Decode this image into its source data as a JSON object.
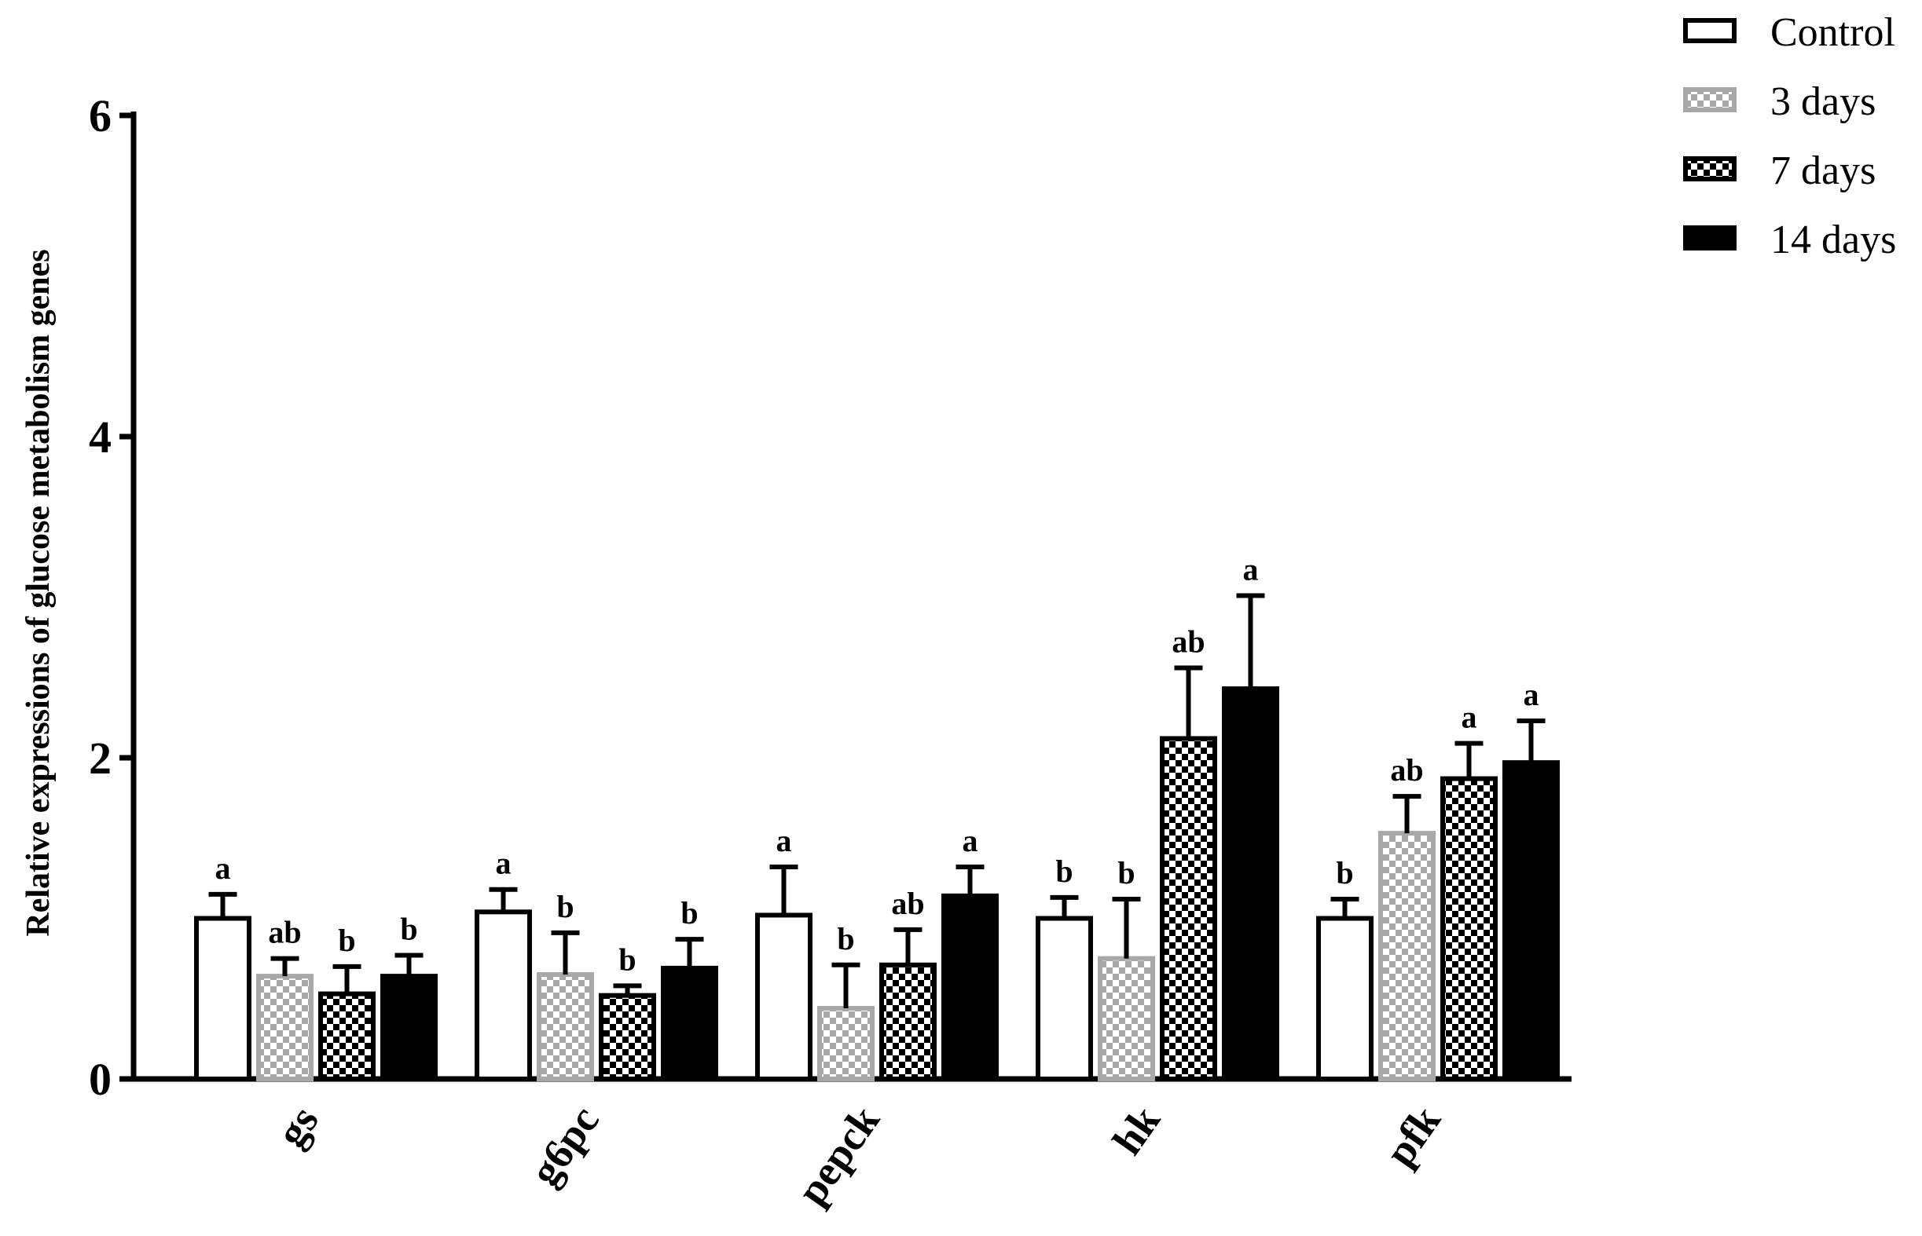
{
  "chart_data": {
    "type": "bar",
    "title": "",
    "xlabel": "",
    "ylabel": "Relative expressions of glucose metabolism genes",
    "ylim": [
      0,
      6
    ],
    "yticks": [
      0,
      2,
      4,
      6
    ],
    "categories": [
      "gs",
      "g6pc",
      "pepck",
      "hk",
      "pfk"
    ],
    "legend_position": "top-right",
    "series": [
      {
        "name": "Control",
        "style": "open",
        "values": [
          1.0,
          1.04,
          1.02,
          1.0,
          1.0
        ],
        "errors": [
          0.15,
          0.14,
          0.3,
          0.13,
          0.12
        ],
        "letters": [
          "a",
          "a",
          "a",
          "b",
          "b"
        ]
      },
      {
        "name": "3 days",
        "style": "grey-checker",
        "values": [
          0.64,
          0.65,
          0.44,
          0.75,
          1.53
        ],
        "errors": [
          0.11,
          0.26,
          0.27,
          0.37,
          0.23
        ],
        "letters": [
          "ab",
          "b",
          "b",
          "b",
          "ab"
        ]
      },
      {
        "name": "7 days",
        "style": "black-checker",
        "values": [
          0.53,
          0.52,
          0.71,
          2.12,
          1.87
        ],
        "errors": [
          0.17,
          0.06,
          0.22,
          0.44,
          0.22
        ],
        "letters": [
          "b",
          "b",
          "ab",
          "ab",
          "a"
        ]
      },
      {
        "name": "14 days",
        "style": "solid",
        "values": [
          0.64,
          0.69,
          1.14,
          2.43,
          1.97
        ],
        "errors": [
          0.13,
          0.18,
          0.18,
          0.58,
          0.26
        ],
        "letters": [
          "b",
          "b",
          "a",
          "a",
          "a"
        ]
      }
    ]
  },
  "colors": {
    "axis": "#000000",
    "control_fill": "#ffffff",
    "grey_checker": "#a8a8a8",
    "black_checker": "#000000",
    "solid_fill": "#000000"
  }
}
